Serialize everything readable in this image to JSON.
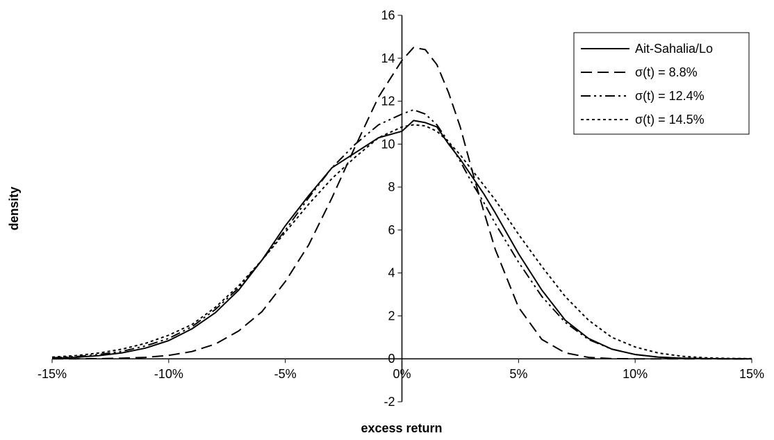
{
  "chart_data": {
    "type": "line",
    "title": "",
    "xlabel": "excess return",
    "ylabel": "density",
    "xlim": [
      -0.15,
      0.15
    ],
    "ylim": [
      -2,
      16
    ],
    "x_tick_labels": [
      "-15%",
      "-10%",
      "-5%",
      "0%",
      "5%",
      "10%",
      "15%"
    ],
    "x_tick_values": [
      -0.15,
      -0.1,
      -0.05,
      0.0,
      0.05,
      0.1,
      0.15
    ],
    "y_tick_labels": [
      "-2",
      "0",
      "2",
      "4",
      "6",
      "8",
      "10",
      "12",
      "14",
      "16"
    ],
    "y_tick_values": [
      -2,
      0,
      2,
      4,
      6,
      8,
      10,
      12,
      14,
      16
    ],
    "grid": false,
    "legend": {
      "placement": "top-right"
    },
    "series": [
      {
        "name": "Ait-Sahalia/Lo",
        "dash": "solid",
        "x": [
          -0.15,
          -0.14,
          -0.13,
          -0.12,
          -0.11,
          -0.1,
          -0.09,
          -0.08,
          -0.07,
          -0.06,
          -0.05,
          -0.04,
          -0.03,
          -0.02,
          -0.01,
          0.0,
          0.005,
          0.01,
          0.015,
          0.02,
          0.025,
          0.03,
          0.035,
          0.04,
          0.05,
          0.06,
          0.07,
          0.08,
          0.09,
          0.1,
          0.11,
          0.12,
          0.13,
          0.14,
          0.15
        ],
        "y": [
          0.03,
          0.07,
          0.15,
          0.28,
          0.5,
          0.85,
          1.4,
          2.15,
          3.2,
          4.6,
          6.2,
          7.6,
          8.9,
          9.6,
          10.3,
          10.6,
          11.1,
          11.0,
          10.8,
          10.0,
          9.3,
          8.5,
          7.7,
          6.8,
          4.9,
          3.2,
          1.8,
          0.95,
          0.45,
          0.2,
          0.08,
          0.03,
          0.01,
          0.0,
          0.0
        ]
      },
      {
        "name": "σ(t) = 8.8%",
        "dash": "dash",
        "x": [
          -0.15,
          -0.14,
          -0.13,
          -0.12,
          -0.11,
          -0.1,
          -0.09,
          -0.08,
          -0.07,
          -0.06,
          -0.05,
          -0.04,
          -0.03,
          -0.02,
          -0.01,
          0.0,
          0.005,
          0.01,
          0.015,
          0.02,
          0.025,
          0.03,
          0.035,
          0.04,
          0.05,
          0.06,
          0.07,
          0.08,
          0.09,
          0.1,
          0.11,
          0.12,
          0.13,
          0.14,
          0.15
        ],
        "y": [
          0.0,
          0.0,
          0.01,
          0.03,
          0.07,
          0.16,
          0.34,
          0.69,
          1.3,
          2.2,
          3.6,
          5.3,
          7.5,
          9.9,
          12.2,
          13.9,
          14.5,
          14.4,
          13.7,
          12.4,
          10.8,
          8.8,
          6.9,
          5.1,
          2.4,
          0.9,
          0.28,
          0.07,
          0.01,
          0.0,
          0.0,
          0.0,
          0.0,
          0.0,
          0.0
        ]
      },
      {
        "name": "σ(t) = 12.4%",
        "dash": "dash-dot-dot",
        "x": [
          -0.15,
          -0.14,
          -0.13,
          -0.12,
          -0.11,
          -0.1,
          -0.09,
          -0.08,
          -0.07,
          -0.06,
          -0.05,
          -0.04,
          -0.03,
          -0.02,
          -0.01,
          0.0,
          0.005,
          0.01,
          0.015,
          0.02,
          0.025,
          0.03,
          0.035,
          0.04,
          0.05,
          0.06,
          0.07,
          0.08,
          0.09,
          0.1,
          0.11,
          0.12,
          0.13,
          0.14,
          0.15
        ],
        "y": [
          0.05,
          0.1,
          0.2,
          0.35,
          0.6,
          0.95,
          1.5,
          2.3,
          3.3,
          4.6,
          6.0,
          7.5,
          8.9,
          10.0,
          10.9,
          11.4,
          11.6,
          11.4,
          10.9,
          10.1,
          9.2,
          8.2,
          7.3,
          6.3,
          4.5,
          2.9,
          1.7,
          0.9,
          0.45,
          0.2,
          0.08,
          0.03,
          0.01,
          0.0,
          0.0
        ]
      },
      {
        "name": "σ(t) = 14.5%",
        "dash": "dot",
        "x": [
          -0.15,
          -0.14,
          -0.13,
          -0.12,
          -0.11,
          -0.1,
          -0.09,
          -0.08,
          -0.07,
          -0.06,
          -0.05,
          -0.04,
          -0.03,
          -0.02,
          -0.01,
          0.0,
          0.005,
          0.01,
          0.015,
          0.02,
          0.025,
          0.03,
          0.035,
          0.04,
          0.05,
          0.06,
          0.07,
          0.08,
          0.09,
          0.1,
          0.11,
          0.12,
          0.13,
          0.14,
          0.15
        ],
        "y": [
          0.08,
          0.15,
          0.27,
          0.45,
          0.72,
          1.1,
          1.6,
          2.4,
          3.4,
          4.6,
          5.9,
          7.2,
          8.4,
          9.4,
          10.3,
          10.8,
          10.9,
          10.85,
          10.6,
          10.1,
          9.5,
          8.8,
          8.1,
          7.4,
          5.8,
          4.3,
          2.9,
          1.8,
          1.0,
          0.55,
          0.27,
          0.12,
          0.05,
          0.02,
          0.01
        ]
      }
    ]
  }
}
